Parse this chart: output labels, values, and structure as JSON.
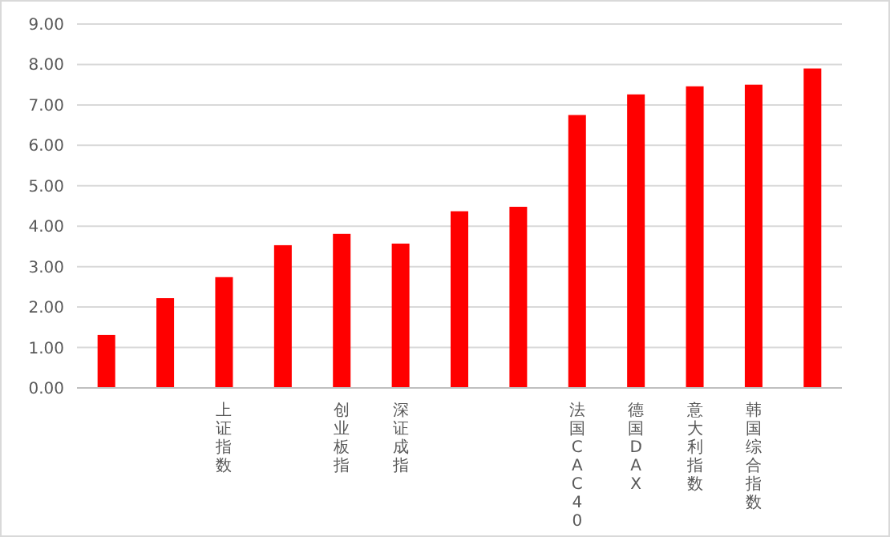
{
  "chart_data": {
    "type": "bar",
    "categories": [
      null,
      null,
      "上证指数",
      null,
      "创业板指",
      "深证成指",
      null,
      null,
      "法国CAC40",
      "德国DAX",
      "意大利指数",
      "韩国综合指数",
      null
    ],
    "values": [
      1.31,
      2.22,
      2.74,
      3.53,
      3.81,
      3.57,
      4.37,
      4.48,
      6.75,
      7.26,
      7.46,
      7.5,
      7.9
    ],
    "color": "#ff0000",
    "ylim": [
      0,
      9
    ],
    "yticks": [
      {
        "value": 0,
        "label": "0.00"
      },
      {
        "value": 1,
        "label": "1.00"
      },
      {
        "value": 2,
        "label": "2.00"
      },
      {
        "value": 3,
        "label": "3.00"
      },
      {
        "value": 4,
        "label": "4.00"
      },
      {
        "value": 5,
        "label": "5.00"
      },
      {
        "value": 6,
        "label": "6.00"
      },
      {
        "value": 7,
        "label": "7.00"
      },
      {
        "value": 8,
        "label": "8.00"
      },
      {
        "value": 9,
        "label": "9.00"
      }
    ],
    "grid": "y"
  }
}
